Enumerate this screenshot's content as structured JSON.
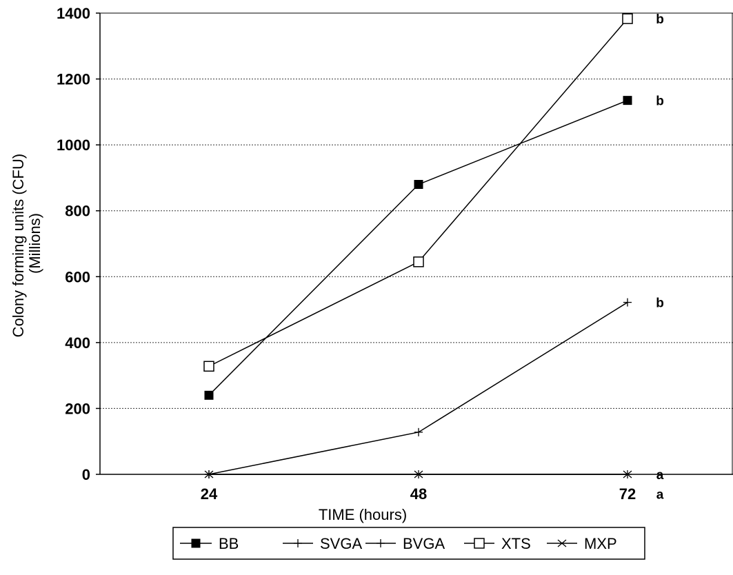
{
  "chart_data": {
    "type": "line",
    "xlabel": "TIME (hours)",
    "ylabel": [
      "Colony forming units (CFU)",
      "(Millions)"
    ],
    "categories": [
      "24",
      "48",
      "72"
    ],
    "ylim": [
      0,
      1400
    ],
    "yticks": [
      0,
      200,
      400,
      600,
      800,
      1000,
      1200,
      1400
    ],
    "grid": "horizontal dotted",
    "legend_position": "bottom",
    "series": [
      {
        "name": "BB",
        "marker": "filled-square",
        "values": [
          240,
          880,
          1135
        ]
      },
      {
        "name": "SVGA",
        "marker": "plus",
        "values": [
          0,
          128,
          522
        ]
      },
      {
        "name": "BVGA",
        "marker": "plus",
        "values": [
          0,
          0,
          0
        ]
      },
      {
        "name": "XTS",
        "marker": "open-square",
        "values": [
          328,
          645,
          1383
        ]
      },
      {
        "name": "MXP",
        "marker": "cross",
        "values": [
          0,
          0,
          0
        ]
      }
    ],
    "annotations": [
      {
        "text": "b",
        "value": 1383
      },
      {
        "text": "b",
        "value": 1135
      },
      {
        "text": "b",
        "value": 522
      },
      {
        "text": "a",
        "value": 0
      },
      {
        "text": "a",
        "value": -60
      }
    ]
  }
}
